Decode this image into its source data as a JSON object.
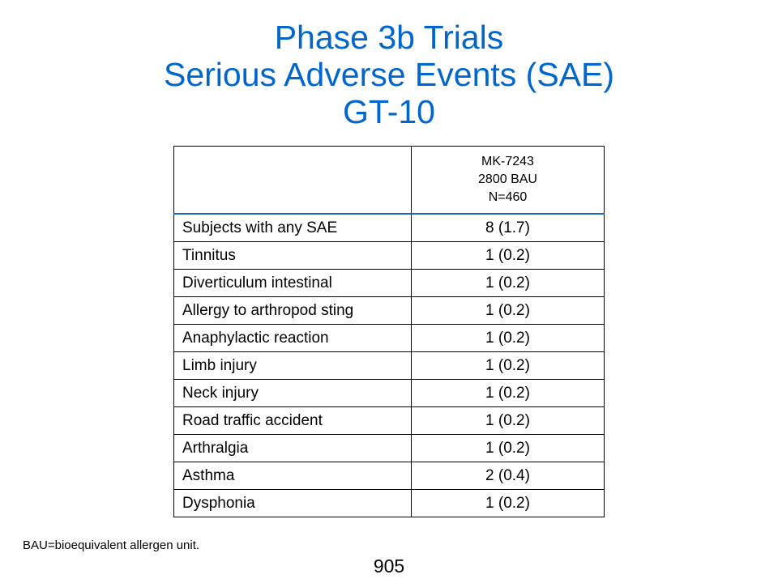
{
  "title": {
    "line1": "Phase 3b Trials",
    "line2": "Serious Adverse Events (SAE)",
    "line3": "GT-10"
  },
  "table": {
    "header": {
      "label": "",
      "group_line1": "MK-7243",
      "group_line2": "2800 BAU",
      "group_line3": "N=460"
    },
    "rows": [
      {
        "label": "Subjects with any SAE",
        "value": "8 (1.7)"
      },
      {
        "label": "Tinnitus",
        "value": "1 (0.2)"
      },
      {
        "label": "Diverticulum intestinal",
        "value": "1 (0.2)"
      },
      {
        "label": "Allergy to arthropod sting",
        "value": "1 (0.2)"
      },
      {
        "label": "Anaphylactic reaction",
        "value": "1 (0.2)"
      },
      {
        "label": "Limb injury",
        "value": "1 (0.2)"
      },
      {
        "label": "Neck injury",
        "value": "1 (0.2)"
      },
      {
        "label": "Road traffic accident",
        "value": "1 (0.2)"
      },
      {
        "label": "Arthralgia",
        "value": "1 (0.2)"
      },
      {
        "label": "Asthma",
        "value": "2 (0.4)"
      },
      {
        "label": "Dysphonia",
        "value": "1 (0.2)"
      }
    ]
  },
  "footnote": "BAU=bioequivalent allergen unit.",
  "page_number": "905",
  "colors": {
    "title": "#0066cc",
    "header_rule": "#1a66c2"
  }
}
